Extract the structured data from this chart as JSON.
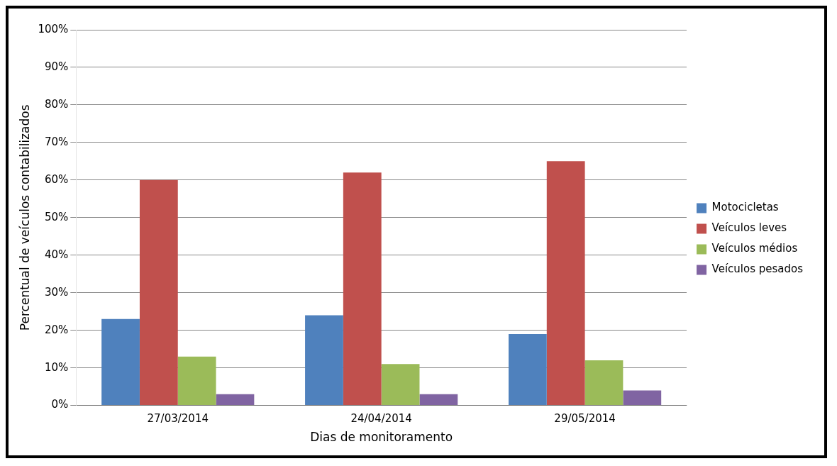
{
  "chart_data": {
    "type": "bar",
    "xlabel": "Dias de monitoramento",
    "ylabel": "Percentual de veículos contabilizados",
    "categories": [
      "27/03/2014",
      "24/04/2014",
      "29/05/2014"
    ],
    "series": [
      {
        "name": "Motocicletas",
        "color": "#4f81bd",
        "values": [
          23,
          24,
          19
        ]
      },
      {
        "name": "Veículos leves",
        "color": "#c0504d",
        "values": [
          60,
          62,
          65
        ]
      },
      {
        "name": "Veículos médios",
        "color": "#9bbb59",
        "values": [
          13,
          11,
          12
        ]
      },
      {
        "name": "Veículos pesados",
        "color": "#8064a2",
        "values": [
          3,
          3,
          4
        ]
      }
    ],
    "ylim": [
      0,
      100
    ],
    "yticks": [
      {
        "value": 0,
        "label": "0%"
      },
      {
        "value": 10,
        "label": "10%"
      },
      {
        "value": 20,
        "label": "20%"
      },
      {
        "value": 30,
        "label": "30%"
      },
      {
        "value": 40,
        "label": "40%"
      },
      {
        "value": 50,
        "label": "50%"
      },
      {
        "value": 60,
        "label": "60%"
      },
      {
        "value": 70,
        "label": "70%"
      },
      {
        "value": 80,
        "label": "80%"
      },
      {
        "value": 90,
        "label": "90%"
      },
      {
        "value": 100,
        "label": "100%"
      }
    ],
    "grid": "y",
    "legend": "right"
  }
}
